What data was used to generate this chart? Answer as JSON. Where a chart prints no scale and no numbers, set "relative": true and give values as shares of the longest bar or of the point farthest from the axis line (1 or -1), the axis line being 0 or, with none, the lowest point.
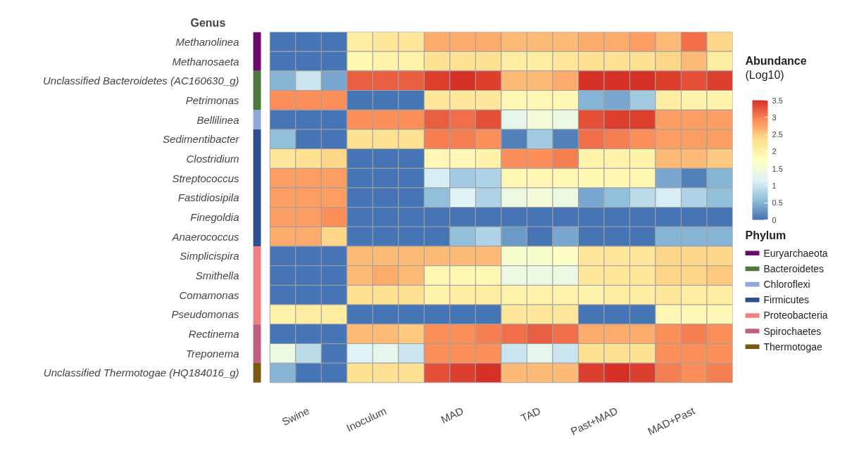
{
  "chart_data": [
    {
      "type": "heatmap",
      "ylabel": "Genus",
      "clabel": "Abundance\n(Log10)",
      "categories": [
        null,
        "Swine",
        null,
        null,
        "Inoculum",
        null,
        null,
        "MAD",
        null,
        null,
        "TAD",
        null,
        null,
        "Past+MAD",
        null,
        null,
        "MAD+Past",
        null
      ],
      "y_categories": [
        "Methanolinea",
        "Methanosaeta",
        "Unclassified Bacteroidetes (AC160630_g)",
        "Petrimonas",
        "Bellilinea",
        "Sedimentibacter",
        "Clostridium",
        "Streptococcus",
        "Fastidiosipila",
        "Finegoldia",
        "Anaerococcus",
        "Simplicispira",
        "Smithella",
        "Comamonas",
        "Pseudomonas",
        "Rectinema",
        "Treponema",
        "Unclassified Thermotogae (HQ184016_g)"
      ],
      "cells": [
        [
          0,
          0,
          0,
          2.1,
          2.2,
          2.2,
          2.7,
          2.7,
          2.7,
          2.6,
          2.6,
          2.6,
          2.7,
          2.7,
          2.8,
          2.6,
          3.1,
          2.4
        ],
        [
          0,
          0,
          0,
          1.9,
          2.0,
          2.0,
          2.3,
          2.3,
          2.3,
          2.1,
          2.1,
          2.2,
          2.3,
          2.3,
          2.3,
          2.4,
          2.6,
          2.1
        ],
        [
          0.5,
          1.0,
          0.4,
          3.2,
          3.2,
          3.2,
          3.4,
          3.5,
          3.4,
          2.6,
          2.6,
          2.7,
          3.5,
          3.5,
          3.5,
          3.4,
          3.3,
          3.4
        ],
        [
          2.9,
          2.9,
          2.9,
          0,
          0,
          0,
          2.2,
          2.2,
          2.2,
          1.9,
          1.9,
          1.9,
          0.5,
          0.4,
          0.7,
          2.1,
          2.0,
          2.0
        ],
        [
          0,
          0,
          0,
          2.9,
          2.9,
          2.9,
          3.2,
          3.1,
          3.3,
          1.3,
          1.5,
          1.4,
          3.3,
          3.4,
          3.4,
          2.8,
          2.8,
          2.8
        ],
        [
          0.6,
          0,
          0,
          2.3,
          2.3,
          2.3,
          3.0,
          3.0,
          2.9,
          0.1,
          0.7,
          0.1,
          3.1,
          3.0,
          2.9,
          2.8,
          2.8,
          2.8
        ],
        [
          2.2,
          2.3,
          2.4,
          0,
          0,
          0,
          1.9,
          1.9,
          2.0,
          2.9,
          2.9,
          3.0,
          2.0,
          2.0,
          2.0,
          2.6,
          2.6,
          2.5
        ],
        [
          2.8,
          2.8,
          2.8,
          0,
          0,
          0,
          1.1,
          0.7,
          0.8,
          1.9,
          1.9,
          1.9,
          1.9,
          1.9,
          1.9,
          0.4,
          0.1,
          0.5
        ],
        [
          2.8,
          2.8,
          2.8,
          0,
          0,
          0,
          0.6,
          1.2,
          0.8,
          1.4,
          1.5,
          1.4,
          0.4,
          0.6,
          0.9,
          1.1,
          0.8,
          0.6
        ],
        [
          2.8,
          2.8,
          2.9,
          0,
          0,
          0,
          0,
          0,
          0,
          0,
          0,
          0,
          0,
          0,
          0,
          0,
          0,
          0
        ],
        [
          2.7,
          2.7,
          2.4,
          0,
          0,
          0,
          0,
          0.6,
          0.8,
          0.3,
          0,
          0.4,
          0,
          0,
          0,
          0.5,
          0.5,
          0.5
        ],
        [
          0,
          0,
          0,
          2.6,
          2.6,
          2.6,
          2.6,
          2.6,
          2.6,
          1.6,
          1.6,
          1.7,
          2.2,
          2.2,
          2.2,
          2.4,
          2.4,
          2.4
        ],
        [
          0,
          0,
          0,
          2.6,
          2.7,
          2.6,
          1.9,
          1.9,
          1.9,
          1.4,
          1.4,
          1.4,
          2.2,
          2.2,
          2.2,
          2.4,
          2.4,
          2.5
        ],
        [
          0,
          0,
          0,
          2.3,
          2.3,
          2.3,
          2.0,
          2.1,
          2.1,
          2.0,
          2.0,
          2.0,
          2.0,
          2.1,
          2.1,
          2.2,
          2.1,
          2.1
        ],
        [
          2.0,
          2.1,
          2.1,
          0,
          0,
          0,
          0,
          0,
          0,
          2.2,
          2.2,
          2.2,
          0,
          0,
          0,
          1.9,
          1.9,
          1.9
        ],
        [
          0,
          0,
          0,
          2.6,
          2.6,
          2.5,
          2.9,
          2.9,
          3.0,
          3.1,
          3.2,
          3.1,
          2.7,
          2.7,
          2.7,
          2.9,
          3.0,
          2.9
        ],
        [
          1.4,
          0.9,
          0,
          1.2,
          1.3,
          1.0,
          2.9,
          2.9,
          2.9,
          1.0,
          1.3,
          1.0,
          2.3,
          2.3,
          2.3,
          2.9,
          2.9,
          2.9
        ],
        [
          0.5,
          0,
          0,
          2.3,
          2.3,
          2.3,
          3.3,
          3.4,
          3.5,
          2.6,
          2.6,
          2.6,
          3.4,
          3.5,
          3.4,
          3.0,
          2.9,
          3.0
        ]
      ],
      "clim": [
        0,
        3.5
      ],
      "cticks": [
        0,
        0.5,
        1,
        1.5,
        2,
        2.5,
        3,
        3.5
      ],
      "grid": false
    },
    {
      "type": "bar",
      "stacked": true,
      "relative": true,
      "legend_title": "Phylum",
      "legend": "right",
      "categories": [
        null
      ],
      "series": [
        {
          "name": "Thermotogae",
          "color": "#7a5a10",
          "values": [
            0.056
          ]
        },
        {
          "name": "Spirochaetes",
          "color": "#c06080",
          "values": [
            0.111
          ]
        },
        {
          "name": "Proteobacteria",
          "color": "#f08080",
          "values": [
            0.222
          ]
        },
        {
          "name": "Firmicutes",
          "color": "#2f4f8f",
          "values": [
            0.333
          ]
        },
        {
          "name": "Chloroflexi",
          "color": "#8ea8d9",
          "values": [
            0.056
          ]
        },
        {
          "name": "Bacteroidetes",
          "color": "#4b7a3c",
          "values": [
            0.111
          ]
        },
        {
          "name": "Euryarchaeota",
          "color": "#6a0a6a",
          "values": [
            0.111
          ]
        }
      ]
    }
  ]
}
